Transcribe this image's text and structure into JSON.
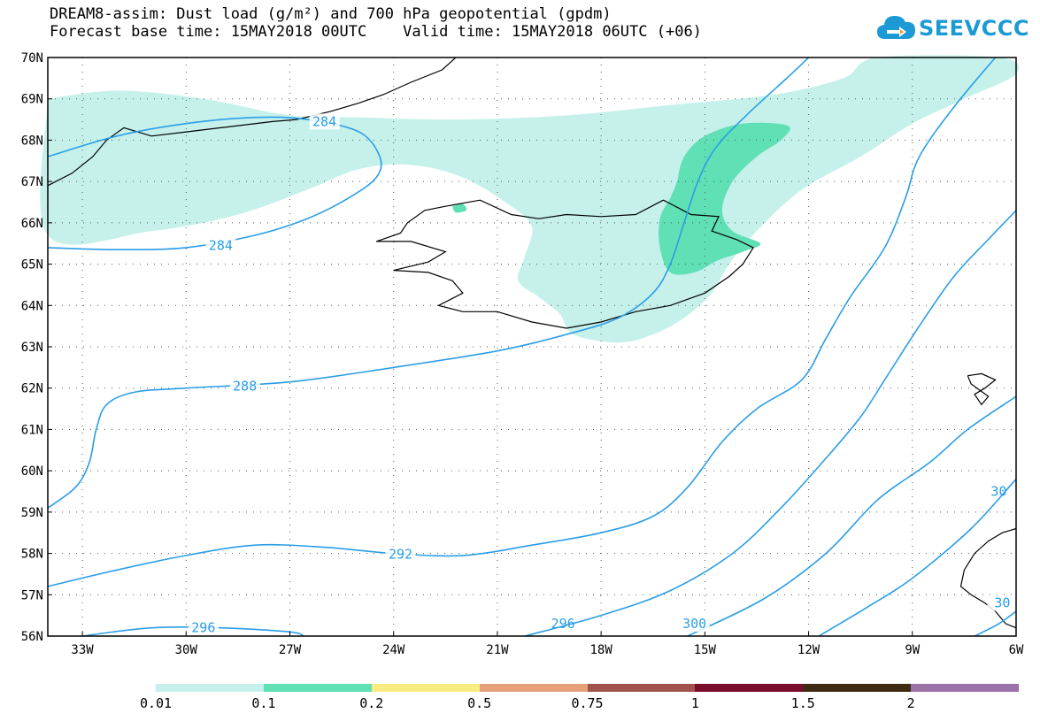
{
  "title": {
    "line1": "DREAM8-assim: Dust load (g/m²) and 700 hPa geopotential (gpdm)",
    "line2": "Forecast base time: 15MAY2018 00UTC    Valid time: 15MAY2018 06UTC (+06)"
  },
  "logo": {
    "text": "SEEVCCC",
    "icon": "cloud-arrow-icon",
    "color": "#1b9ad6"
  },
  "map": {
    "lon_range": [
      -34.0,
      -6.0
    ],
    "lat_range": [
      56.0,
      70.0
    ],
    "lon_ticks": [
      {
        "v": -33,
        "label": "33W"
      },
      {
        "v": -30,
        "label": "30W"
      },
      {
        "v": -27,
        "label": "27W"
      },
      {
        "v": -24,
        "label": "24W"
      },
      {
        "v": -21,
        "label": "21W"
      },
      {
        "v": -18,
        "label": "18W"
      },
      {
        "v": -15,
        "label": "15W"
      },
      {
        "v": -12,
        "label": "12W"
      },
      {
        "v": -9,
        "label": "9W"
      },
      {
        "v": -6,
        "label": "6W"
      }
    ],
    "lat_ticks": [
      {
        "v": 70,
        "label": "70N"
      },
      {
        "v": 69,
        "label": "69N"
      },
      {
        "v": 68,
        "label": "68N"
      },
      {
        "v": 67,
        "label": "67N"
      },
      {
        "v": 66,
        "label": "66N"
      },
      {
        "v": 65,
        "label": "65N"
      },
      {
        "v": 64,
        "label": "64N"
      },
      {
        "v": 63,
        "label": "63N"
      },
      {
        "v": 62,
        "label": "62N"
      },
      {
        "v": 61,
        "label": "61N"
      },
      {
        "v": 60,
        "label": "60N"
      },
      {
        "v": 59,
        "label": "59N"
      },
      {
        "v": 58,
        "label": "58N"
      },
      {
        "v": 57,
        "label": "57N"
      },
      {
        "v": 56,
        "label": "56N"
      }
    ],
    "contour_color": "#2a9ee6",
    "contours": [
      {
        "value": "284",
        "labels": [
          "284",
          "284"
        ],
        "points": [
          [
            -34,
            67.6
          ],
          [
            -32,
            68.1
          ],
          [
            -30,
            68.4
          ],
          [
            -28,
            68.55
          ],
          [
            -26.5,
            68.5
          ],
          [
            -25,
            68.2
          ],
          [
            -24.4,
            67.6
          ],
          [
            -24.5,
            67.1
          ],
          [
            -25.3,
            66.6
          ],
          [
            -26.5,
            66.1
          ],
          [
            -28,
            65.7
          ],
          [
            -30,
            65.4
          ],
          [
            -32,
            65.35
          ],
          [
            -34,
            65.4
          ]
        ]
      },
      {
        "value": "288",
        "labels": [
          "288"
        ],
        "points": [
          [
            -34,
            59.1
          ],
          [
            -33.2,
            59.6
          ],
          [
            -32.8,
            60.2
          ],
          [
            -32.6,
            61.0
          ],
          [
            -32.3,
            61.6
          ],
          [
            -31.5,
            61.9
          ],
          [
            -30,
            62.0
          ],
          [
            -27,
            62.15
          ],
          [
            -24,
            62.5
          ],
          [
            -21,
            62.9
          ],
          [
            -19,
            63.3
          ],
          [
            -17.5,
            63.7
          ],
          [
            -16.5,
            64.3
          ],
          [
            -16,
            65.0
          ],
          [
            -15.6,
            66.0
          ],
          [
            -15.2,
            67.0
          ],
          [
            -14.7,
            67.8
          ],
          [
            -13.8,
            68.6
          ],
          [
            -12.5,
            69.6
          ],
          [
            -12.0,
            70.0
          ]
        ]
      },
      {
        "value": "292",
        "labels": [
          "292"
        ],
        "points": [
          [
            -34,
            57.2
          ],
          [
            -32,
            57.6
          ],
          [
            -30,
            57.95
          ],
          [
            -28,
            58.2
          ],
          [
            -26,
            58.15
          ],
          [
            -24,
            58.0
          ],
          [
            -22,
            57.95
          ],
          [
            -20,
            58.2
          ],
          [
            -18,
            58.5
          ],
          [
            -16.5,
            58.9
          ],
          [
            -15.5,
            59.6
          ],
          [
            -14.5,
            60.7
          ],
          [
            -13.5,
            61.5
          ],
          [
            -12.2,
            62.2
          ],
          [
            -11.5,
            63.2
          ],
          [
            -10.8,
            64.2
          ],
          [
            -9.8,
            65.4
          ],
          [
            -9.2,
            66.6
          ],
          [
            -8.8,
            67.6
          ],
          [
            -7.8,
            68.8
          ],
          [
            -6.6,
            70.0
          ]
        ]
      },
      {
        "value": "296",
        "labels": [
          "296",
          "296"
        ],
        "points": [
          [
            -33,
            56.0
          ],
          [
            -31,
            56.2
          ],
          [
            -29,
            56.2
          ],
          [
            -27,
            56.1
          ],
          [
            -26.6,
            56.0
          ]
        ]
      },
      {
        "value": "296b",
        "labels": [],
        "points": [
          [
            -20.2,
            56.0
          ],
          [
            -18,
            56.5
          ],
          [
            -16,
            57.1
          ],
          [
            -14.2,
            58.0
          ],
          [
            -12.8,
            59.1
          ],
          [
            -11.5,
            60.3
          ],
          [
            -10.5,
            61.3
          ],
          [
            -9.8,
            62.2
          ],
          [
            -8.8,
            63.5
          ],
          [
            -7.8,
            64.7
          ],
          [
            -6.8,
            65.6
          ],
          [
            -6.0,
            66.3
          ]
        ]
      },
      {
        "value": "300",
        "labels": [
          "300",
          "30"
        ],
        "points": [
          [
            -15.5,
            56.0
          ],
          [
            -13.3,
            56.9
          ],
          [
            -11.5,
            58.0
          ],
          [
            -10,
            59.3
          ],
          [
            -8.5,
            60.2
          ],
          [
            -7.4,
            61.0
          ],
          [
            -6.0,
            61.8
          ]
        ]
      },
      {
        "value": "300b",
        "labels": [],
        "points": [
          [
            -11.7,
            56.0
          ],
          [
            -10.3,
            56.7
          ],
          [
            -9,
            57.4
          ],
          [
            -7.3,
            58.6
          ],
          [
            -6.0,
            59.8
          ]
        ]
      },
      {
        "value": "304",
        "labels": [
          "30"
        ],
        "points": [
          [
            -7.2,
            56.0
          ],
          [
            -6.5,
            56.3
          ],
          [
            -6.0,
            56.6
          ]
        ]
      }
    ],
    "contour_label_positions": "inline",
    "dust_levels": [
      {
        "min": 0.01,
        "color": "#c6f1eb"
      },
      {
        "min": 0.1,
        "color": "#5fe0b5"
      }
    ],
    "dust_regions": [
      {
        "level": 0.01,
        "points": [
          [
            -34,
            69.0
          ],
          [
            -32,
            69.2
          ],
          [
            -29.5,
            69.0
          ],
          [
            -27,
            68.6
          ],
          [
            -25,
            68.55
          ],
          [
            -22,
            68.5
          ],
          [
            -19,
            68.6
          ],
          [
            -16,
            68.85
          ],
          [
            -13,
            69.1
          ],
          [
            -11,
            69.5
          ],
          [
            -10,
            70.0
          ],
          [
            -6.5,
            70.0
          ],
          [
            -6.0,
            69.6
          ],
          [
            -7.5,
            69.0
          ],
          [
            -9,
            68.4
          ],
          [
            -10.5,
            67.6
          ],
          [
            -12.2,
            66.8
          ],
          [
            -13.5,
            65.8
          ],
          [
            -14.3,
            65.0
          ],
          [
            -14.8,
            64.3
          ],
          [
            -15.6,
            63.7
          ],
          [
            -16.5,
            63.3
          ],
          [
            -17.5,
            63.1
          ],
          [
            -18.8,
            63.3
          ],
          [
            -19.2,
            63.8
          ],
          [
            -19.8,
            64.2
          ],
          [
            -20.4,
            64.6
          ],
          [
            -20.2,
            65.2
          ],
          [
            -20.0,
            65.9
          ],
          [
            -20.6,
            66.4
          ],
          [
            -22,
            67.1
          ],
          [
            -23.5,
            67.4
          ],
          [
            -25,
            67.3
          ],
          [
            -26.5,
            66.8
          ],
          [
            -28.5,
            66.2
          ],
          [
            -31,
            65.8
          ],
          [
            -34,
            65.7
          ]
        ]
      },
      {
        "level": 0.1,
        "points": [
          [
            -15.8,
            67.0
          ],
          [
            -15.6,
            67.6
          ],
          [
            -15.0,
            68.1
          ],
          [
            -13.9,
            68.4
          ],
          [
            -12.6,
            68.35
          ],
          [
            -12.8,
            68.0
          ],
          [
            -13.5,
            67.6
          ],
          [
            -14.2,
            67.0
          ],
          [
            -14.5,
            66.3
          ],
          [
            -14.2,
            65.8
          ],
          [
            -13.4,
            65.5
          ],
          [
            -13.9,
            65.3
          ],
          [
            -14.6,
            65.1
          ],
          [
            -15.3,
            64.8
          ],
          [
            -16.0,
            64.8
          ],
          [
            -16.3,
            65.4
          ],
          [
            -16.3,
            66.1
          ],
          [
            -16.0,
            66.6
          ]
        ]
      },
      {
        "level": 0.1,
        "points": [
          [
            -22.3,
            66.4
          ],
          [
            -22.0,
            66.45
          ],
          [
            -21.9,
            66.3
          ],
          [
            -22.2,
            66.25
          ]
        ]
      }
    ],
    "coastline_color": "#000000",
    "coastlines": [
      {
        "name": "iceland",
        "points": [
          [
            -22.5,
            66.4
          ],
          [
            -21.5,
            66.55
          ],
          [
            -20.6,
            66.2
          ],
          [
            -19.8,
            66.1
          ],
          [
            -19.0,
            66.2
          ],
          [
            -18.0,
            66.15
          ],
          [
            -17.0,
            66.2
          ],
          [
            -16.2,
            66.55
          ],
          [
            -15.4,
            66.2
          ],
          [
            -14.6,
            66.15
          ],
          [
            -14.8,
            65.8
          ],
          [
            -14.1,
            65.6
          ],
          [
            -13.6,
            65.4
          ],
          [
            -13.9,
            65.0
          ],
          [
            -14.3,
            64.7
          ],
          [
            -15.0,
            64.3
          ],
          [
            -16.0,
            64.0
          ],
          [
            -17.0,
            63.85
          ],
          [
            -18.0,
            63.6
          ],
          [
            -19.0,
            63.45
          ],
          [
            -20.0,
            63.6
          ],
          [
            -21.0,
            63.85
          ],
          [
            -22.0,
            63.85
          ],
          [
            -22.7,
            64.0
          ],
          [
            -22.0,
            64.3
          ],
          [
            -22.3,
            64.6
          ],
          [
            -23.0,
            64.8
          ],
          [
            -24.0,
            64.85
          ],
          [
            -23.0,
            65.05
          ],
          [
            -22.5,
            65.3
          ],
          [
            -23.5,
            65.55
          ],
          [
            -24.5,
            65.55
          ],
          [
            -23.8,
            65.75
          ],
          [
            -23.6,
            66.0
          ],
          [
            -23.1,
            66.3
          ],
          [
            -22.5,
            66.4
          ]
        ]
      },
      {
        "name": "greenland",
        "points": [
          [
            -34,
            66.9
          ],
          [
            -33.3,
            67.2
          ],
          [
            -32.7,
            67.6
          ],
          [
            -32.3,
            68.0
          ],
          [
            -31.8,
            68.3
          ],
          [
            -31.0,
            68.1
          ],
          [
            -30.0,
            68.2
          ],
          [
            -29.0,
            68.3
          ],
          [
            -27.5,
            68.45
          ],
          [
            -26.8,
            68.5
          ],
          [
            -25.8,
            68.7
          ],
          [
            -25.0,
            68.9
          ],
          [
            -24.3,
            69.1
          ],
          [
            -23.5,
            69.4
          ],
          [
            -22.6,
            69.7
          ],
          [
            -22.2,
            70.0
          ]
        ]
      },
      {
        "name": "faroe",
        "points": [
          [
            -7.4,
            62.3
          ],
          [
            -7.0,
            62.35
          ],
          [
            -6.6,
            62.2
          ],
          [
            -6.9,
            62.0
          ],
          [
            -7.2,
            61.85
          ],
          [
            -7.0,
            61.6
          ],
          [
            -6.8,
            61.8
          ],
          [
            -7.3,
            62.1
          ],
          [
            -7.4,
            62.3
          ]
        ]
      },
      {
        "name": "scotland",
        "points": [
          [
            -6.0,
            58.6
          ],
          [
            -6.4,
            58.5
          ],
          [
            -6.8,
            58.3
          ],
          [
            -7.2,
            58.0
          ],
          [
            -7.5,
            57.6
          ],
          [
            -7.6,
            57.2
          ],
          [
            -7.3,
            57.0
          ],
          [
            -6.9,
            56.8
          ],
          [
            -6.6,
            56.6
          ],
          [
            -6.3,
            56.3
          ],
          [
            -6.0,
            56.2
          ]
        ]
      }
    ]
  },
  "legend": {
    "colors": [
      "#c6f1eb",
      "#5fe0b5",
      "#f8eb80",
      "#e6a17b",
      "#a0524c",
      "#7a0e2a",
      "#3f2a14",
      "#9b72a8"
    ],
    "labels": [
      {
        "text": "0.01",
        "at": 0
      },
      {
        "text": "0.1",
        "at": 1
      },
      {
        "text": "0.2",
        "at": 2
      },
      {
        "text": "0.5",
        "at": 3
      },
      {
        "text": "0.75",
        "at": 4
      },
      {
        "text": "1",
        "at": 5
      },
      {
        "text": "1.5",
        "at": 6
      },
      {
        "text": "2",
        "at": 7
      }
    ]
  }
}
